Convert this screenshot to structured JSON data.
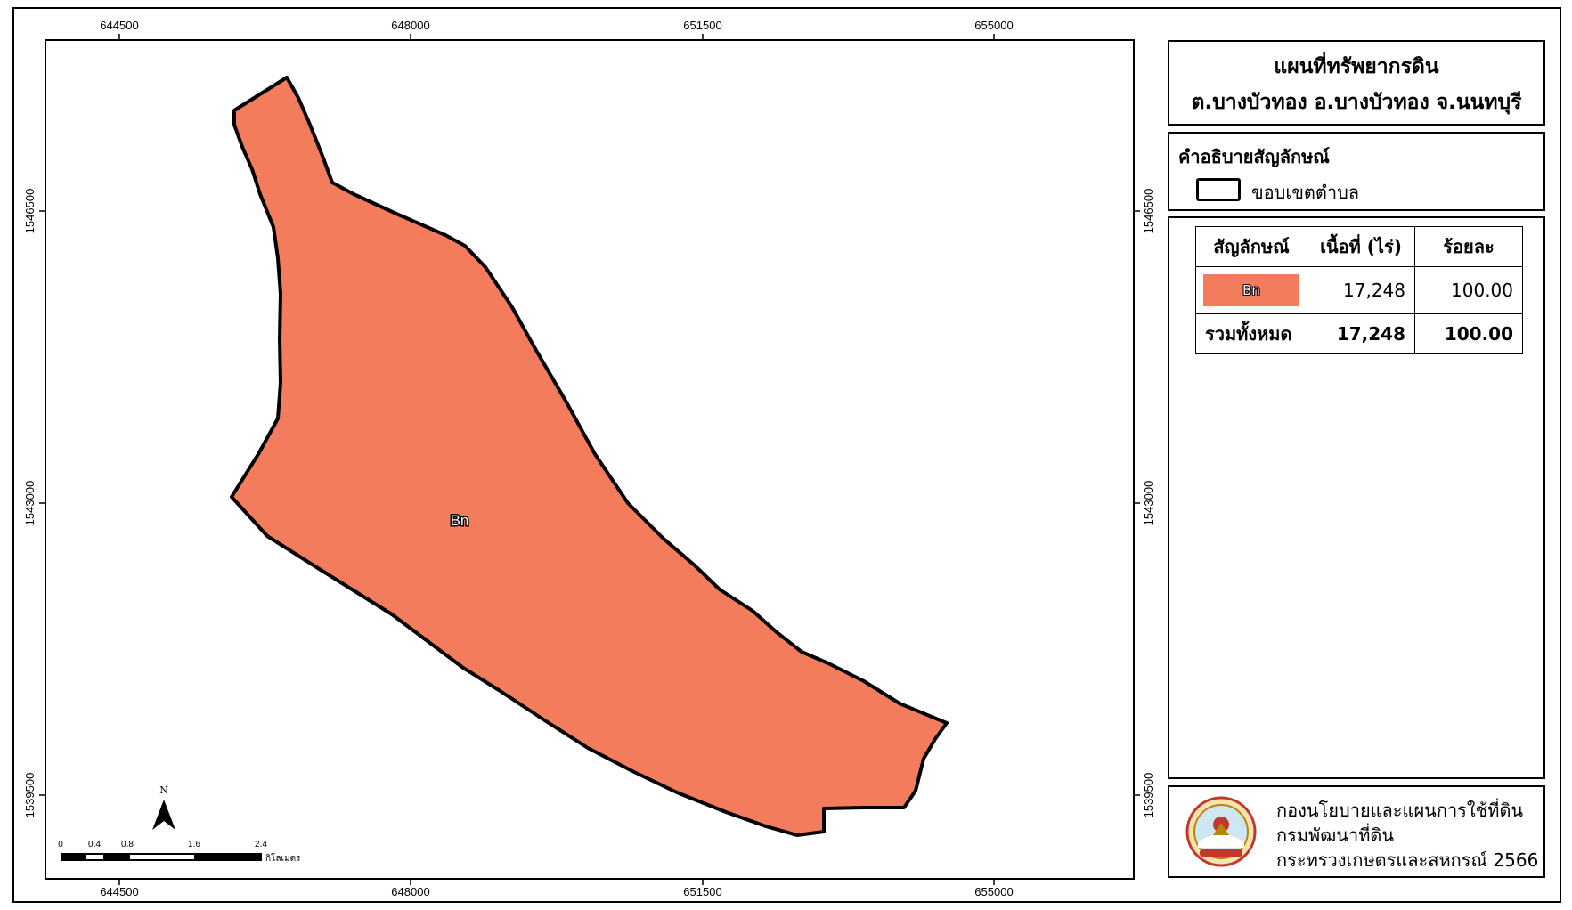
{
  "map": {
    "x_ticks": [
      "644500",
      "648000",
      "651500",
      "655000"
    ],
    "y_ticks": [
      "1546500",
      "1543000",
      "1539500"
    ],
    "polygon_label": "Bn",
    "fill_color": "#f27c5c"
  },
  "scalebar": {
    "ticks": [
      "0",
      "0.4",
      "0.8",
      "1.6",
      "2.4"
    ],
    "unit": "กิโลเมตร",
    "north": "N"
  },
  "title": {
    "line1": "แผนที่ทรัพยากรดิน",
    "line2": "ต.บางบัวทอง อ.บางบัวทอง จ.นนทบุรี"
  },
  "legend": {
    "heading": "คำอธิบายสัญลักษณ์",
    "boundary_label": "ขอบเขตตำบล"
  },
  "table": {
    "headers": [
      "สัญลักษณ์",
      "เนื้อที่ (ไร่)",
      "ร้อยละ"
    ],
    "row": {
      "symbol": "Bn",
      "area": "17,248",
      "percent": "100.00"
    },
    "total": {
      "label": "รวมทั้งหมด",
      "area": "17,248",
      "percent": "100.00"
    }
  },
  "credit": {
    "line1": "กองนโยบายและแผนการใช้ที่ดิน",
    "line2": "กรมพัฒนาที่ดิน",
    "line3": "กระทรวงเกษตรและสหกรณ์ 2566"
  }
}
